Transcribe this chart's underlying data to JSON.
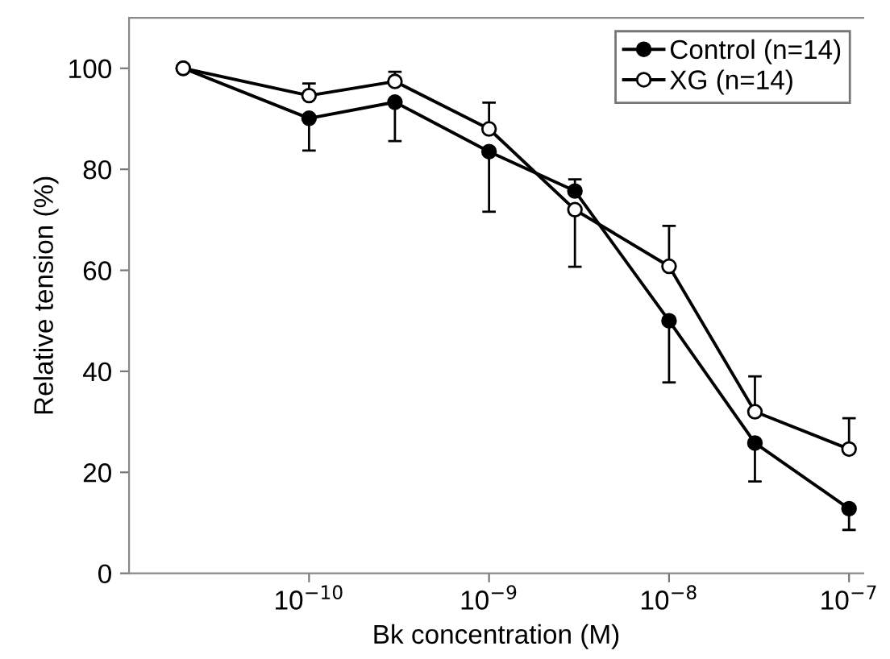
{
  "chart_data": {
    "type": "line",
    "xlabel": "Bk concentration (M)",
    "ylabel": "Relative tension (%)",
    "log": "x",
    "xlim": [
      1e-11,
      1.2e-07
    ],
    "xticks": [
      {
        "value": 1e-10,
        "label": "10$^{−10}$"
      },
      {
        "value": 1e-09,
        "label": "10$^{−9}$"
      },
      {
        "value": 1e-08,
        "label": "10$^{−8}$"
      },
      {
        "value": 1e-07,
        "label": "10$^{−7}$"
      }
    ],
    "ylim": [
      0,
      110
    ],
    "yticks": [
      0,
      20,
      40,
      60,
      80,
      100
    ],
    "x": [
      2e-11,
      1e-10,
      3e-10,
      1e-09,
      3e-09,
      1e-08,
      3e-08,
      1e-07
    ],
    "marker": "circle",
    "line_style": "solid",
    "grid": false,
    "legend": "top right",
    "series": [
      {
        "name": "Control (n=14)",
        "color": "#000000",
        "values": [
          100,
          90.1,
          93.3,
          83.5,
          75.7,
          50,
          25.8,
          12.8
        ],
        "errors": [
          null,
          [
            83.7,
            90.1
          ],
          [
            85.6,
            93.3
          ],
          [
            71.6,
            83.5
          ],
          [
            75.7,
            78
          ],
          [
            37.8,
            50
          ],
          [
            18.2,
            25.8
          ],
          [
            8.6,
            12.8
          ]
        ]
      },
      {
        "name": "XG (n=14)",
        "color": "#000000",
        "values": [
          100,
          94.6,
          97.4,
          88,
          72,
          60.8,
          32,
          24.6
        ],
        "errors": [
          null,
          [
            94.6,
            97
          ],
          [
            97.4,
            99.3
          ],
          [
            88,
            93.2
          ],
          [
            60.7,
            72
          ],
          [
            60.8,
            68.8
          ],
          [
            32,
            39
          ],
          [
            24.6,
            30.7
          ]
        ]
      }
    ]
  }
}
